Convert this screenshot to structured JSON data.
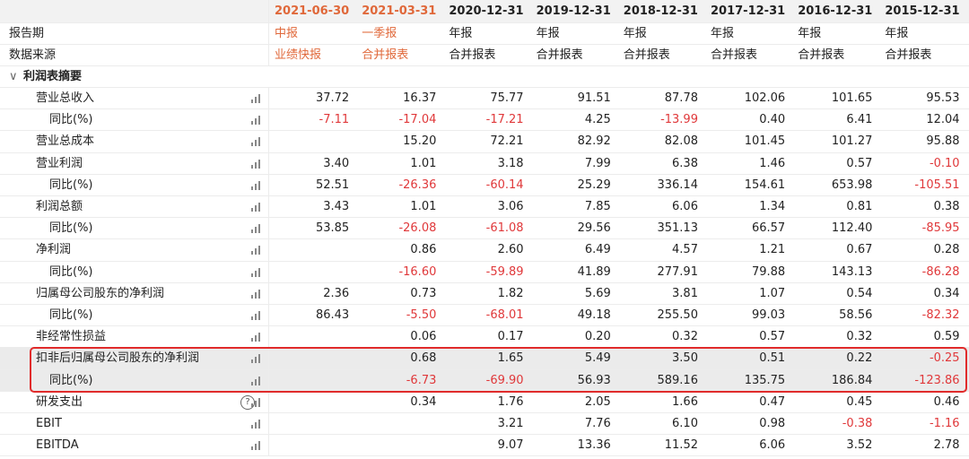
{
  "header": {
    "dates": [
      "2021-06-30",
      "2021-03-31",
      "2020-12-31",
      "2019-12-31",
      "2018-12-31",
      "2017-12-31",
      "2016-12-31",
      "2015-12-31"
    ],
    "period_label": "报告期",
    "periods": [
      "中报",
      "一季报",
      "年报",
      "年报",
      "年报",
      "年报",
      "年报",
      "年报"
    ],
    "source_label": "数据来源",
    "sources": [
      "业绩快报",
      "合并报表",
      "合并报表",
      "合并报表",
      "合并报表",
      "合并报表",
      "合并报表",
      "合并报表"
    ],
    "highlight_color": "#e0683a"
  },
  "section": "利润表摘要",
  "rows": [
    {
      "label": "营业总收入",
      "values": [
        "37.72",
        "16.37",
        "75.77",
        "91.51",
        "87.78",
        "102.06",
        "101.65",
        "95.53"
      ],
      "yoy": {
        "label": "同比(%)",
        "values": [
          "-7.11",
          "-17.04",
          "-17.21",
          "4.25",
          "-13.99",
          "0.40",
          "6.41",
          "12.04"
        ]
      }
    },
    {
      "label": "营业总成本",
      "values": [
        null,
        "15.20",
        "72.21",
        "82.92",
        "82.08",
        "101.45",
        "101.27",
        "95.88"
      ]
    },
    {
      "label": "营业利润",
      "values": [
        "3.40",
        "1.01",
        "3.18",
        "7.99",
        "6.38",
        "1.46",
        "0.57",
        "-0.10"
      ],
      "yoy": {
        "label": "同比(%)",
        "values": [
          "52.51",
          "-26.36",
          "-60.14",
          "25.29",
          "336.14",
          "154.61",
          "653.98",
          "-105.51"
        ]
      }
    },
    {
      "label": "利润总额",
      "values": [
        "3.43",
        "1.01",
        "3.06",
        "7.85",
        "6.06",
        "1.34",
        "0.81",
        "0.38"
      ],
      "yoy": {
        "label": "同比(%)",
        "values": [
          "53.85",
          "-26.08",
          "-61.08",
          "29.56",
          "351.13",
          "66.57",
          "112.40",
          "-85.95"
        ]
      }
    },
    {
      "label": "净利润",
      "values": [
        null,
        "0.86",
        "2.60",
        "6.49",
        "4.57",
        "1.21",
        "0.67",
        "0.28"
      ],
      "yoy": {
        "label": "同比(%)",
        "values": [
          null,
          "-16.60",
          "-59.89",
          "41.89",
          "277.91",
          "79.88",
          "143.13",
          "-86.28"
        ]
      }
    },
    {
      "label": "归属母公司股东的净利润",
      "values": [
        "2.36",
        "0.73",
        "1.82",
        "5.69",
        "3.81",
        "1.07",
        "0.54",
        "0.34"
      ],
      "yoy": {
        "label": "同比(%)",
        "values": [
          "86.43",
          "-5.50",
          "-68.01",
          "49.18",
          "255.50",
          "99.03",
          "58.56",
          "-82.32"
        ]
      }
    },
    {
      "label": "非经常性损益",
      "values": [
        null,
        "0.06",
        "0.17",
        "0.20",
        "0.32",
        "0.57",
        "0.32",
        "0.59"
      ]
    },
    {
      "label": "扣非后归属母公司股东的净利润",
      "highlighted": true,
      "values": [
        null,
        "0.68",
        "1.65",
        "5.49",
        "3.50",
        "0.51",
        "0.22",
        "-0.25"
      ],
      "yoy": {
        "label": "同比(%)",
        "values": [
          null,
          "-6.73",
          "-69.90",
          "56.93",
          "589.16",
          "135.75",
          "186.84",
          "-123.86"
        ]
      }
    },
    {
      "label": "研发支出",
      "help": true,
      "values": [
        null,
        "0.34",
        "1.76",
        "2.05",
        "1.66",
        "0.47",
        "0.45",
        "0.46"
      ]
    },
    {
      "label": "EBIT",
      "values": [
        null,
        null,
        "3.21",
        "7.76",
        "6.10",
        "0.98",
        "-0.38",
        "-1.16"
      ]
    },
    {
      "label": "EBITDA",
      "values": [
        null,
        null,
        "9.07",
        "13.36",
        "11.52",
        "6.06",
        "3.52",
        "2.78"
      ]
    }
  ]
}
